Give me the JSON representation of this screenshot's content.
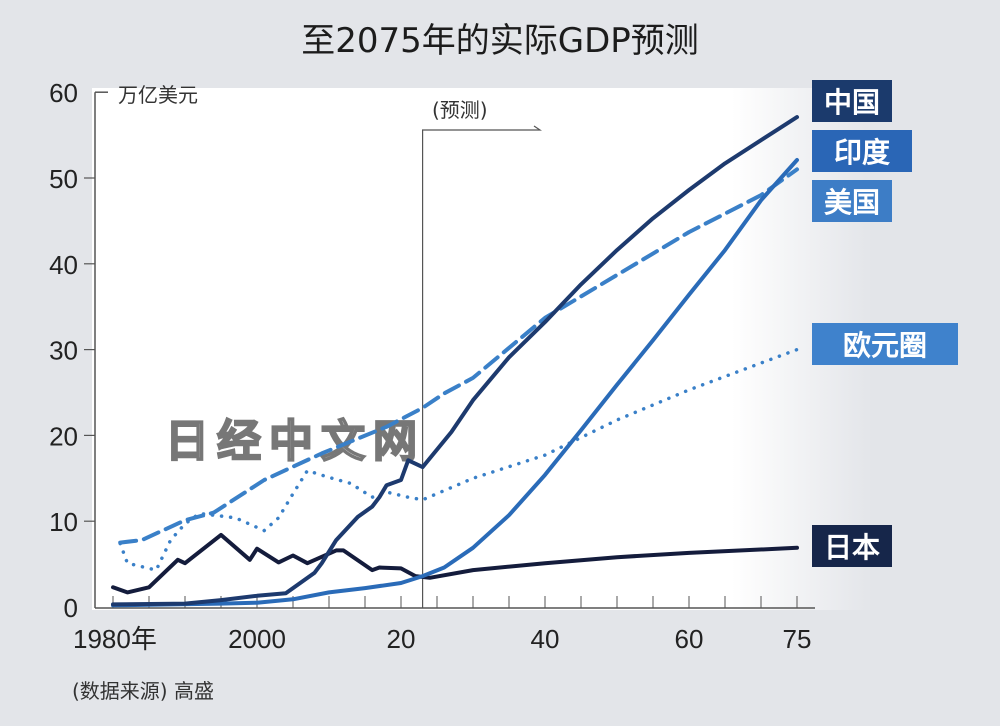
{
  "chart_data": {
    "type": "line",
    "title": "至2075年的实际GDP预测",
    "ylabel": "万亿美元",
    "ylim": [
      0,
      60
    ],
    "xlim": [
      1980,
      2075
    ],
    "yticks": [
      "0",
      "10",
      "20",
      "30",
      "40",
      "50",
      "60"
    ],
    "xticks": [
      {
        "year": 1980,
        "label": "1980年"
      },
      {
        "year": 2000,
        "label": "2000"
      },
      {
        "year": 2020,
        "label": "20"
      },
      {
        "year": 2040,
        "label": "40"
      },
      {
        "year": 2060,
        "label": "60"
      },
      {
        "year": 2075,
        "label": "75"
      }
    ],
    "forecast_start": 2023,
    "forecast_label": "(预测)",
    "source": "(数据来源) 高盛",
    "watermark": "日经中文网",
    "grid": false,
    "legend_placement": "right, next to line ends",
    "series": [
      {
        "name": "中国",
        "color": "#1d3a6e",
        "label_bg": "#1b3a6c",
        "style": "solid",
        "points": [
          [
            1980,
            0.3
          ],
          [
            1990,
            0.4
          ],
          [
            1995,
            0.8
          ],
          [
            2000,
            1.3
          ],
          [
            2004,
            1.6
          ],
          [
            2008,
            4.0
          ],
          [
            2009,
            5.1
          ],
          [
            2011,
            7.8
          ],
          [
            2014,
            10.5
          ],
          [
            2016,
            11.7
          ],
          [
            2017,
            12.8
          ],
          [
            2018,
            14.2
          ],
          [
            2020,
            14.8
          ],
          [
            2021,
            17.1
          ],
          [
            2023,
            16.3
          ],
          [
            2027,
            20.4
          ],
          [
            2030,
            24.1
          ],
          [
            2035,
            29.1
          ],
          [
            2040,
            33.2
          ],
          [
            2045,
            37.6
          ],
          [
            2050,
            41.6
          ],
          [
            2055,
            45.3
          ],
          [
            2060,
            48.6
          ],
          [
            2065,
            51.7
          ],
          [
            2070,
            54.4
          ],
          [
            2075,
            57.1
          ]
        ]
      },
      {
        "name": "印度",
        "color": "#2a6bb8",
        "label_bg": "#2a66b6",
        "style": "solid",
        "points": [
          [
            1980,
            0.2
          ],
          [
            1995,
            0.4
          ],
          [
            2000,
            0.5
          ],
          [
            2005,
            0.9
          ],
          [
            2010,
            1.7
          ],
          [
            2015,
            2.2
          ],
          [
            2020,
            2.8
          ],
          [
            2023,
            3.6
          ],
          [
            2026,
            4.6
          ],
          [
            2030,
            6.9
          ],
          [
            2035,
            10.7
          ],
          [
            2040,
            15.4
          ],
          [
            2045,
            20.6
          ],
          [
            2050,
            25.9
          ],
          [
            2055,
            31.1
          ],
          [
            2060,
            36.4
          ],
          [
            2065,
            41.6
          ],
          [
            2070,
            47.4
          ],
          [
            2075,
            52.1
          ]
        ]
      },
      {
        "name": "美国",
        "color": "#3a80c8",
        "label_bg": "#3d7dc6",
        "style": "dashed",
        "points": [
          [
            1981,
            7.5
          ],
          [
            1984,
            7.8
          ],
          [
            1990,
            10.1
          ],
          [
            1994,
            11.0
          ],
          [
            2001,
            14.8
          ],
          [
            2009,
            17.9
          ],
          [
            2018,
            21.0
          ],
          [
            2023,
            23.2
          ],
          [
            2026,
            24.9
          ],
          [
            2030,
            26.7
          ],
          [
            2040,
            33.7
          ],
          [
            2050,
            38.7
          ],
          [
            2060,
            43.7
          ],
          [
            2070,
            48.0
          ],
          [
            2075,
            51.0
          ]
        ]
      },
      {
        "name": "欧元圈",
        "color": "#3a80c8",
        "label_bg": "#3f82cc",
        "style": "dotted",
        "points": [
          [
            1981,
            7.4
          ],
          [
            1982,
            5.1
          ],
          [
            1986,
            4.3
          ],
          [
            1988,
            7.8
          ],
          [
            1990,
            9.7
          ],
          [
            1992,
            10.9
          ],
          [
            1994,
            10.7
          ],
          [
            1997,
            10.4
          ],
          [
            2001,
            8.9
          ],
          [
            2003,
            10.4
          ],
          [
            2005,
            13.2
          ],
          [
            2007,
            15.9
          ],
          [
            2010,
            15.1
          ],
          [
            2013,
            14.4
          ],
          [
            2016,
            12.8
          ],
          [
            2018,
            13.4
          ],
          [
            2021,
            12.8
          ],
          [
            2023,
            12.5
          ],
          [
            2030,
            15.0
          ],
          [
            2040,
            17.7
          ],
          [
            2050,
            21.8
          ],
          [
            2060,
            25.3
          ],
          [
            2075,
            30.0
          ]
        ]
      },
      {
        "name": "日本",
        "color": "#141c3c",
        "label_bg": "#16264a",
        "style": "solid",
        "points": [
          [
            1980,
            2.3
          ],
          [
            1982,
            1.7
          ],
          [
            1985,
            2.3
          ],
          [
            1989,
            5.5
          ],
          [
            1990,
            5.1
          ],
          [
            1995,
            8.4
          ],
          [
            1999,
            5.5
          ],
          [
            2000,
            6.8
          ],
          [
            2003,
            5.2
          ],
          [
            2005,
            6.0
          ],
          [
            2007,
            5.1
          ],
          [
            2011,
            6.6
          ],
          [
            2012,
            6.6
          ],
          [
            2016,
            4.3
          ],
          [
            2017,
            4.6
          ],
          [
            2020,
            4.5
          ],
          [
            2022,
            3.6
          ],
          [
            2024,
            3.4
          ],
          [
            2030,
            4.3
          ],
          [
            2040,
            5.1
          ],
          [
            2050,
            5.8
          ],
          [
            2060,
            6.3
          ],
          [
            2075,
            6.9
          ]
        ]
      }
    ]
  }
}
